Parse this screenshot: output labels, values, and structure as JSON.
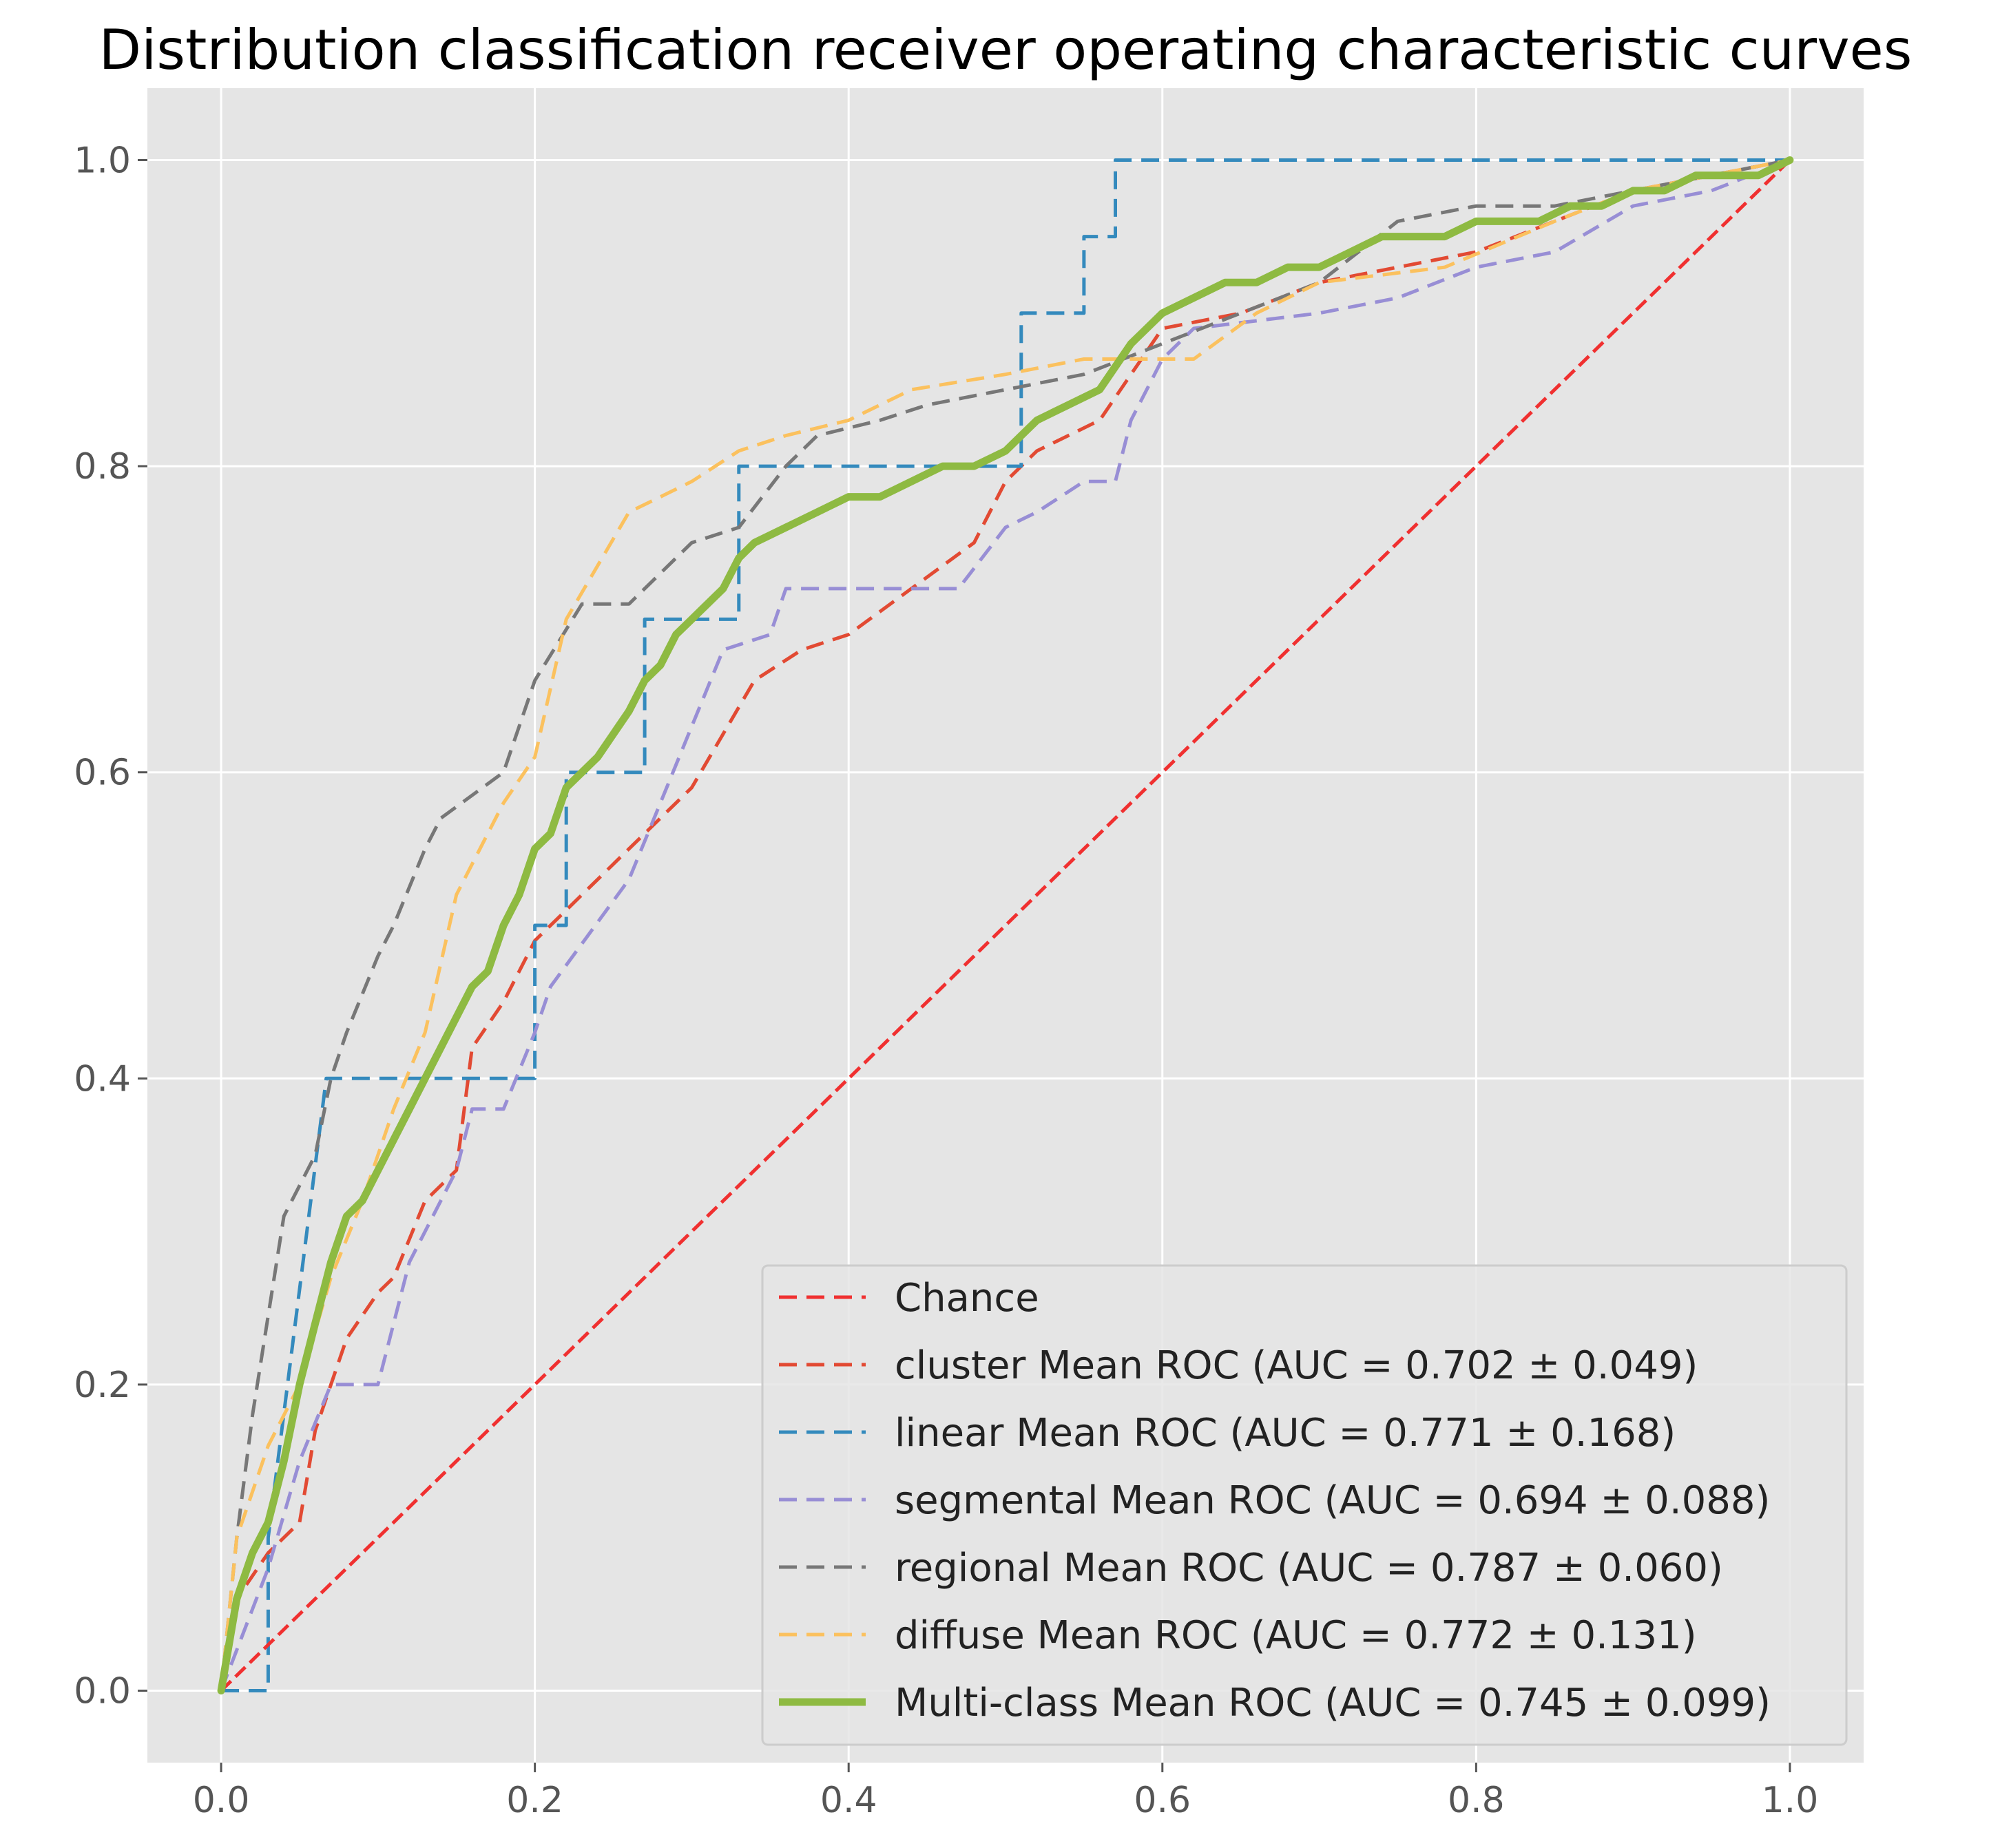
{
  "chart_data": {
    "type": "line",
    "title": "Distribution classification receiver operating characteristic curves",
    "xlabel": "",
    "ylabel": "",
    "xlim": [
      -0.047,
      1.047
    ],
    "ylim": [
      -0.047,
      1.047
    ],
    "xticks": [
      0.0,
      0.2,
      0.4,
      0.6,
      0.8,
      1.0
    ],
    "yticks": [
      0.0,
      0.2,
      0.4,
      0.6,
      0.8,
      1.0
    ],
    "xtick_labels": [
      "0.0",
      "0.2",
      "0.4",
      "0.6",
      "0.8",
      "1.0"
    ],
    "ytick_labels": [
      "0.0",
      "0.2",
      "0.4",
      "0.6",
      "0.8",
      "1.0"
    ],
    "grid": true,
    "legend_position": "lower-right",
    "series": [
      {
        "name": "Chance",
        "color": "#f03030",
        "style": "dashed",
        "x": [
          0,
          1
        ],
        "y": [
          0,
          1
        ]
      },
      {
        "name": "cluster Mean ROC (AUC = 0.702 ± 0.049)",
        "color": "#e24a33",
        "style": "dashed",
        "x": [
          0,
          0.01,
          0.03,
          0.05,
          0.06,
          0.08,
          0.1,
          0.11,
          0.13,
          0.15,
          0.16,
          0.18,
          0.2,
          0.22,
          0.26,
          0.3,
          0.34,
          0.37,
          0.4,
          0.44,
          0.48,
          0.5,
          0.52,
          0.56,
          0.6,
          0.65,
          0.7,
          0.75,
          0.8,
          0.85,
          0.9,
          0.95,
          1.0
        ],
        "y": [
          0,
          0.06,
          0.09,
          0.11,
          0.17,
          0.23,
          0.26,
          0.27,
          0.32,
          0.34,
          0.42,
          0.45,
          0.49,
          0.51,
          0.55,
          0.59,
          0.66,
          0.68,
          0.69,
          0.72,
          0.75,
          0.79,
          0.81,
          0.83,
          0.89,
          0.9,
          0.92,
          0.93,
          0.94,
          0.96,
          0.98,
          0.99,
          1.0
        ]
      },
      {
        "name": "linear Mean ROC (AUC = 0.771 ± 0.168)",
        "color": "#348abd",
        "style": "dashed",
        "x": [
          0,
          0.03,
          0.03,
          0.067,
          0.067,
          0.2,
          0.2,
          0.2,
          0.22,
          0.22,
          0.27,
          0.27,
          0.33,
          0.33,
          0.51,
          0.51,
          0.55,
          0.55,
          0.57,
          0.57,
          0.93,
          1.0
        ],
        "y": [
          0,
          0,
          0.1,
          0.4,
          0.4,
          0.4,
          0.43,
          0.5,
          0.5,
          0.6,
          0.6,
          0.7,
          0.7,
          0.8,
          0.8,
          0.9,
          0.9,
          0.95,
          0.95,
          1.0,
          1.0,
          1.0
        ]
      },
      {
        "name": "segmental Mean ROC (AUC = 0.694 ± 0.088)",
        "color": "#988ed5",
        "style": "dashed",
        "x": [
          0,
          0.03,
          0.05,
          0.07,
          0.1,
          0.12,
          0.15,
          0.16,
          0.18,
          0.2,
          0.21,
          0.26,
          0.28,
          0.3,
          0.32,
          0.35,
          0.36,
          0.47,
          0.5,
          0.52,
          0.55,
          0.57,
          0.58,
          0.6,
          0.62,
          0.7,
          0.75,
          0.8,
          0.85,
          0.9,
          0.95,
          1.0
        ],
        "y": [
          0,
          0.08,
          0.15,
          0.2,
          0.2,
          0.28,
          0.34,
          0.38,
          0.38,
          0.43,
          0.46,
          0.53,
          0.58,
          0.63,
          0.68,
          0.69,
          0.72,
          0.72,
          0.76,
          0.77,
          0.79,
          0.79,
          0.83,
          0.87,
          0.89,
          0.9,
          0.91,
          0.93,
          0.94,
          0.97,
          0.98,
          1.0
        ]
      },
      {
        "name": "regional Mean ROC (AUC = 0.787 ± 0.060)",
        "color": "#777777",
        "style": "dashed",
        "x": [
          0,
          0.01,
          0.02,
          0.04,
          0.06,
          0.07,
          0.08,
          0.1,
          0.11,
          0.13,
          0.14,
          0.18,
          0.2,
          0.23,
          0.26,
          0.3,
          0.33,
          0.36,
          0.38,
          0.42,
          0.45,
          0.55,
          0.6,
          0.7,
          0.75,
          0.8,
          0.85,
          0.9,
          0.95,
          1.0
        ],
        "y": [
          0,
          0.1,
          0.18,
          0.31,
          0.35,
          0.4,
          0.43,
          0.48,
          0.5,
          0.55,
          0.57,
          0.6,
          0.66,
          0.71,
          0.71,
          0.75,
          0.76,
          0.8,
          0.82,
          0.83,
          0.84,
          0.86,
          0.88,
          0.92,
          0.96,
          0.97,
          0.97,
          0.98,
          0.99,
          1.0
        ]
      },
      {
        "name": "diffuse Mean ROC (AUC = 0.772 ± 0.131)",
        "color": "#fbc15e",
        "style": "dashed",
        "x": [
          0,
          0.01,
          0.03,
          0.05,
          0.07,
          0.09,
          0.11,
          0.13,
          0.15,
          0.18,
          0.2,
          0.22,
          0.26,
          0.28,
          0.3,
          0.33,
          0.36,
          0.4,
          0.44,
          0.5,
          0.55,
          0.62,
          0.66,
          0.7,
          0.78,
          0.85,
          0.9,
          0.95,
          1.0
        ],
        "y": [
          0,
          0.1,
          0.16,
          0.2,
          0.27,
          0.32,
          0.38,
          0.43,
          0.52,
          0.58,
          0.61,
          0.7,
          0.77,
          0.78,
          0.79,
          0.81,
          0.82,
          0.83,
          0.85,
          0.86,
          0.87,
          0.87,
          0.9,
          0.92,
          0.93,
          0.96,
          0.98,
          0.99,
          1.0
        ]
      },
      {
        "name": "Multi-class Mean ROC (AUC = 0.745 ± 0.099)",
        "color": "#8eba42",
        "style": "solid",
        "x": [
          0,
          0.01,
          0.02,
          0.03,
          0.04,
          0.05,
          0.06,
          0.07,
          0.08,
          0.09,
          0.1,
          0.11,
          0.12,
          0.13,
          0.14,
          0.15,
          0.16,
          0.17,
          0.18,
          0.19,
          0.2,
          0.21,
          0.22,
          0.24,
          0.26,
          0.27,
          0.28,
          0.29,
          0.3,
          0.32,
          0.33,
          0.34,
          0.36,
          0.38,
          0.4,
          0.42,
          0.44,
          0.46,
          0.48,
          0.5,
          0.52,
          0.54,
          0.56,
          0.58,
          0.6,
          0.62,
          0.64,
          0.66,
          0.68,
          0.7,
          0.72,
          0.74,
          0.76,
          0.78,
          0.8,
          0.82,
          0.84,
          0.86,
          0.88,
          0.9,
          0.92,
          0.94,
          0.96,
          0.98,
          1.0
        ],
        "y": [
          0,
          0.06,
          0.09,
          0.11,
          0.15,
          0.2,
          0.24,
          0.28,
          0.31,
          0.32,
          0.34,
          0.36,
          0.38,
          0.4,
          0.42,
          0.44,
          0.46,
          0.47,
          0.5,
          0.52,
          0.55,
          0.56,
          0.59,
          0.61,
          0.64,
          0.66,
          0.67,
          0.69,
          0.7,
          0.72,
          0.74,
          0.75,
          0.76,
          0.77,
          0.78,
          0.78,
          0.79,
          0.8,
          0.8,
          0.81,
          0.83,
          0.84,
          0.85,
          0.88,
          0.9,
          0.91,
          0.92,
          0.92,
          0.93,
          0.93,
          0.94,
          0.95,
          0.95,
          0.95,
          0.96,
          0.96,
          0.96,
          0.97,
          0.97,
          0.98,
          0.98,
          0.99,
          0.99,
          0.99,
          1.0
        ]
      }
    ]
  }
}
